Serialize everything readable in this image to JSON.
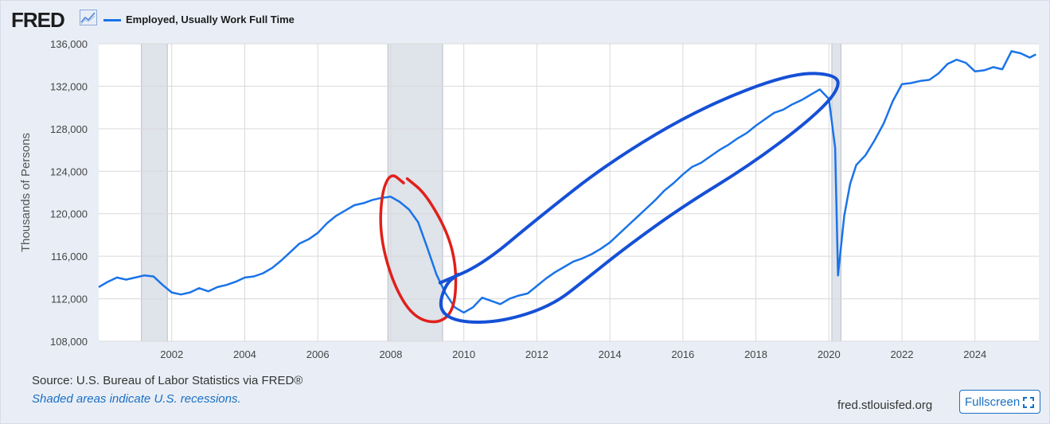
{
  "header": {
    "logo_text": "FRED",
    "logo_icon": "line-chart-icon",
    "legend_label": "Employed, Usually Work Full Time"
  },
  "colors": {
    "series": "#1a73e8",
    "recession": "#dfe3ea",
    "grid": "#d9d9d9",
    "annotation_red": "#e0201b",
    "annotation_blue": "#1550d6"
  },
  "footer": {
    "source": "Source: U.S. Bureau of Labor Statistics via FRED®",
    "note": "Shaded areas indicate U.S. recessions.",
    "site": "fred.stlouisfed.org",
    "fullscreen_label": "Fullscreen",
    "fullscreen_icon": "expand-icon"
  },
  "chart_data": {
    "type": "line",
    "title": "",
    "xlabel": "",
    "ylabel": "Thousands of Persons",
    "xlim": [
      2000.0,
      2025.75
    ],
    "ylim": [
      108000,
      136000
    ],
    "yticks": [
      108000,
      112000,
      116000,
      120000,
      124000,
      128000,
      132000,
      136000
    ],
    "ytick_labels": [
      "108,000",
      "112,000",
      "116,000",
      "120,000",
      "124,000",
      "128,000",
      "132,000",
      "136,000"
    ],
    "xticks": [
      2002,
      2004,
      2006,
      2008,
      2010,
      2012,
      2014,
      2016,
      2018,
      2020,
      2022,
      2024
    ],
    "xtick_labels": [
      "2002",
      "2004",
      "2006",
      "2008",
      "2010",
      "2012",
      "2014",
      "2016",
      "2018",
      "2020",
      "2022",
      "2024"
    ],
    "grid": true,
    "recessions": [
      [
        2001.17,
        2001.88
      ],
      [
        2007.92,
        2009.42
      ],
      [
        2020.08,
        2020.33
      ]
    ],
    "series": [
      {
        "name": "Employed, Usually Work Full Time",
        "x": [
          2000.0,
          2000.25,
          2000.5,
          2000.75,
          2001.0,
          2001.25,
          2001.5,
          2001.75,
          2002.0,
          2002.25,
          2002.5,
          2002.75,
          2003.0,
          2003.25,
          2003.5,
          2003.75,
          2004.0,
          2004.25,
          2004.5,
          2004.75,
          2005.0,
          2005.25,
          2005.5,
          2005.75,
          2006.0,
          2006.25,
          2006.5,
          2006.75,
          2007.0,
          2007.25,
          2007.5,
          2007.75,
          2008.0,
          2008.25,
          2008.5,
          2008.75,
          2009.0,
          2009.25,
          2009.5,
          2009.75,
          2010.0,
          2010.25,
          2010.5,
          2010.75,
          2011.0,
          2011.25,
          2011.5,
          2011.75,
          2012.0,
          2012.25,
          2012.5,
          2012.75,
          2013.0,
          2013.25,
          2013.5,
          2013.75,
          2014.0,
          2014.25,
          2014.5,
          2014.75,
          2015.0,
          2015.25,
          2015.5,
          2015.75,
          2016.0,
          2016.25,
          2016.5,
          2016.75,
          2017.0,
          2017.25,
          2017.5,
          2017.75,
          2018.0,
          2018.25,
          2018.5,
          2018.75,
          2019.0,
          2019.25,
          2019.5,
          2019.75,
          2020.0,
          2020.17,
          2020.25,
          2020.42,
          2020.58,
          2020.75,
          2021.0,
          2021.25,
          2021.5,
          2021.75,
          2022.0,
          2022.25,
          2022.5,
          2022.75,
          2023.0,
          2023.25,
          2023.5,
          2023.75,
          2024.0,
          2024.25,
          2024.5,
          2024.75,
          2025.0,
          2025.25,
          2025.5,
          2025.67
        ],
        "values": [
          113100,
          113600,
          114000,
          113800,
          114000,
          114200,
          114100,
          113300,
          112600,
          112400,
          112600,
          113000,
          112700,
          113100,
          113300,
          113600,
          114000,
          114100,
          114400,
          114900,
          115600,
          116400,
          117200,
          117600,
          118200,
          119100,
          119800,
          120300,
          120800,
          121000,
          121300,
          121500,
          121600,
          121100,
          120400,
          119200,
          116800,
          114300,
          112500,
          111200,
          110700,
          111200,
          112100,
          111800,
          111500,
          112000,
          112300,
          112500,
          113200,
          113900,
          114500,
          115000,
          115500,
          115800,
          116200,
          116700,
          117300,
          118100,
          118900,
          119700,
          120500,
          121300,
          122200,
          122900,
          123700,
          124400,
          124800,
          125400,
          126000,
          126500,
          127100,
          127600,
          128300,
          128900,
          129500,
          129800,
          130300,
          130700,
          131200,
          131700,
          130800,
          126200,
          114200,
          119800,
          122800,
          124600,
          125500,
          126900,
          128500,
          130600,
          132200,
          132300,
          132500,
          132600,
          133200,
          134100,
          134500,
          134200,
          133400,
          133500,
          133800,
          133600,
          135300,
          135100,
          134700,
          135000
        ]
      }
    ],
    "annotations": [
      {
        "type": "freehand-circle",
        "color": "red",
        "around_x": [
          2007.7,
          2010.0
        ],
        "around_y": [
          109600,
          124000
        ]
      },
      {
        "type": "freehand-ellipse",
        "color": "blue",
        "around_x": [
          2009.3,
          2020.4
        ],
        "around_y": [
          109800,
          133300
        ]
      }
    ]
  }
}
